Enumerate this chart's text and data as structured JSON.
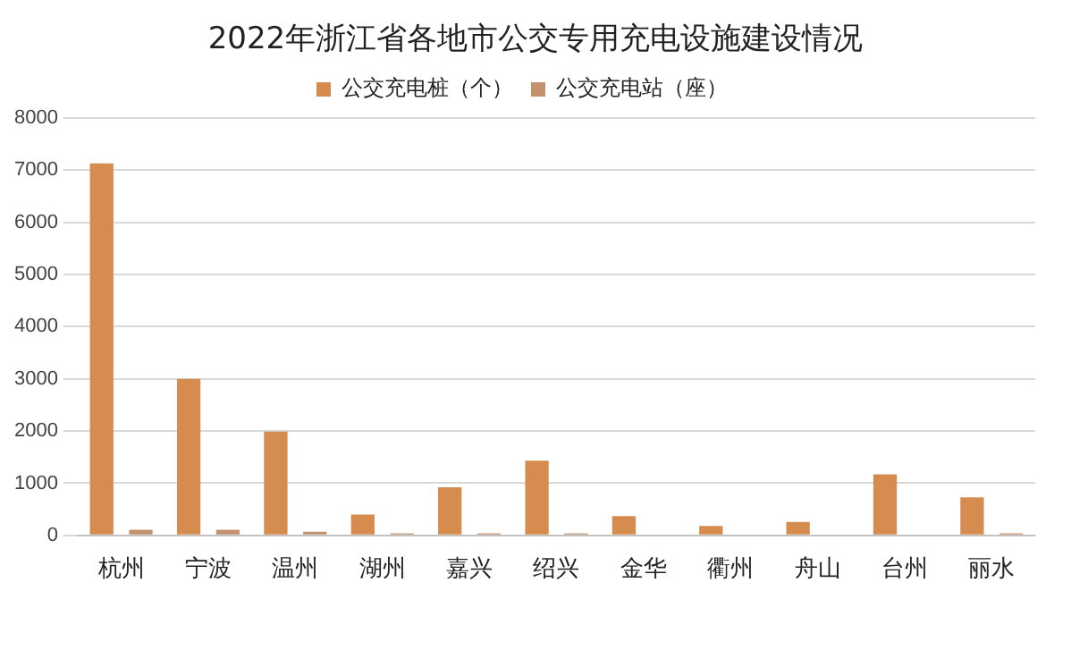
{
  "chart_data": {
    "type": "bar",
    "title": "2022年浙江省各地市公交专用充电设施建设情况",
    "categories": [
      "杭州",
      "宁波",
      "温州",
      "湖州",
      "嘉兴",
      "绍兴",
      "金华",
      "衢州",
      "舟山",
      "台州",
      "丽水"
    ],
    "series": [
      {
        "name": "公交充电桩（个）",
        "color": "#d68c4e",
        "values": [
          7130,
          3000,
          1990,
          400,
          920,
          1430,
          370,
          180,
          260,
          1170,
          730
        ]
      },
      {
        "name": "公交充电站（座）",
        "color": "#c4936e",
        "values": [
          110,
          110,
          70,
          40,
          40,
          40,
          0,
          0,
          0,
          0,
          40
        ]
      }
    ],
    "ylim": [
      0,
      8000
    ],
    "yticks": [
      0,
      1000,
      2000,
      3000,
      4000,
      5000,
      6000,
      7000,
      8000
    ],
    "grid": "y",
    "legend": "top"
  }
}
